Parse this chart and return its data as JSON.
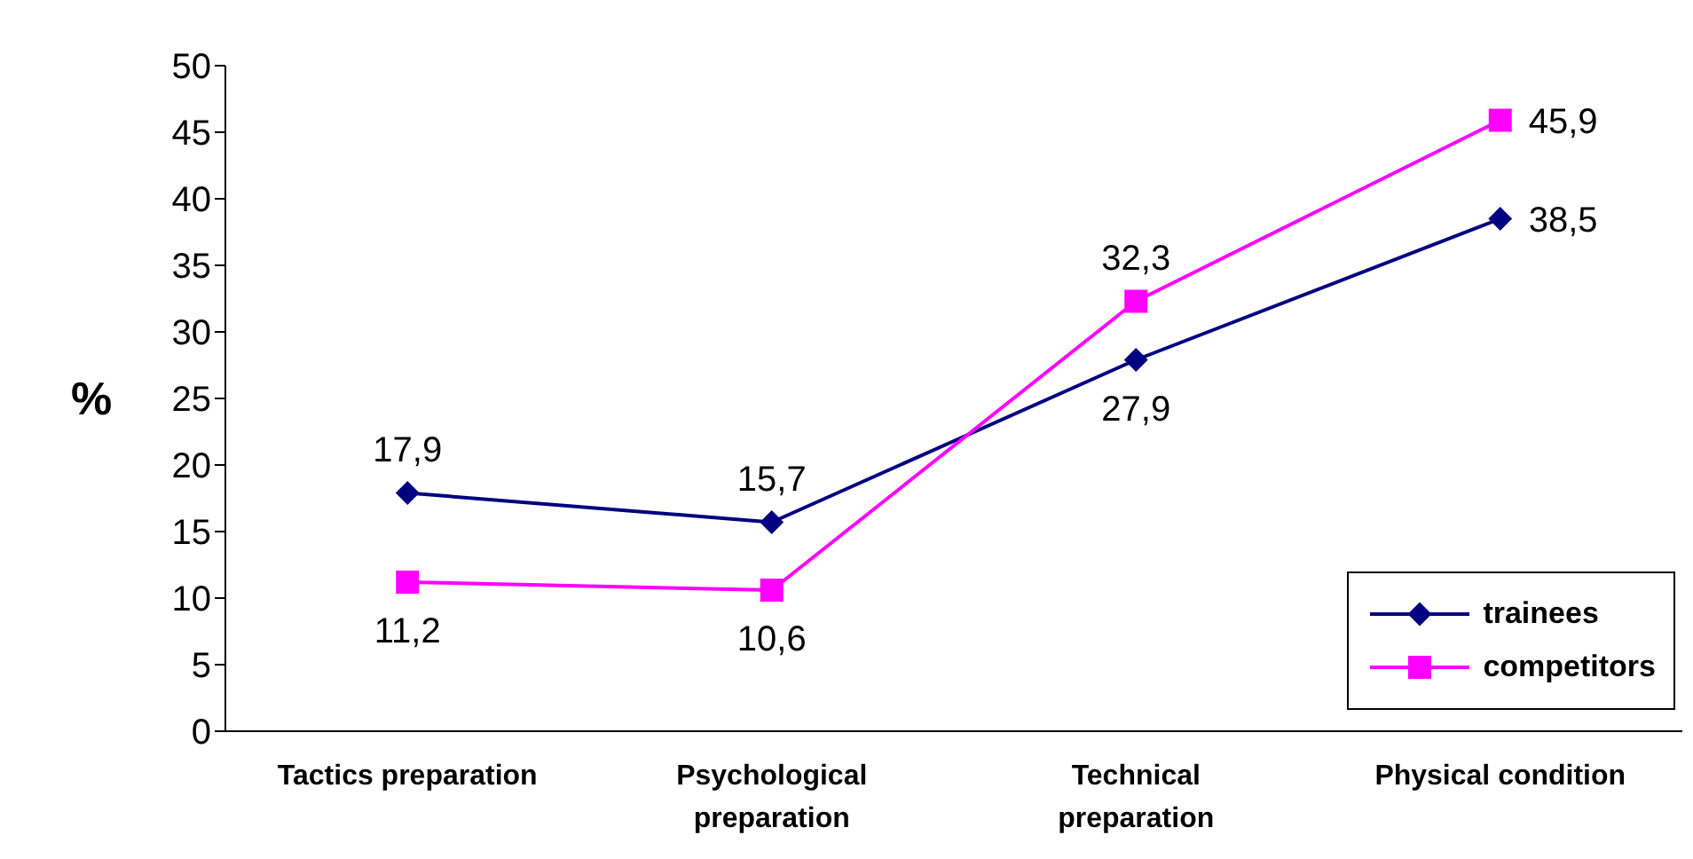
{
  "chart_data": {
    "type": "line",
    "ylabel": "%",
    "categories": [
      "Tactics preparation",
      "Psychological preparation",
      "Technical preparation",
      "Physical condition"
    ],
    "series": [
      {
        "name": "trainees",
        "color": "#000080",
        "marker": "diamond",
        "values": [
          17.9,
          15.7,
          27.9,
          38.5
        ],
        "value_labels": [
          "17,9",
          "15,7",
          "27,9",
          "38,5"
        ]
      },
      {
        "name": "competitors",
        "color": "#ff00ff",
        "marker": "square",
        "values": [
          11.2,
          10.6,
          32.3,
          45.9
        ],
        "value_labels": [
          "11,2",
          "10,6",
          "32,3",
          "45,9"
        ]
      }
    ],
    "ylim": [
      0,
      50
    ],
    "yticks": [
      0,
      5,
      10,
      15,
      20,
      25,
      30,
      35,
      40,
      45,
      50
    ],
    "grid": false,
    "legend": "bottom right"
  }
}
